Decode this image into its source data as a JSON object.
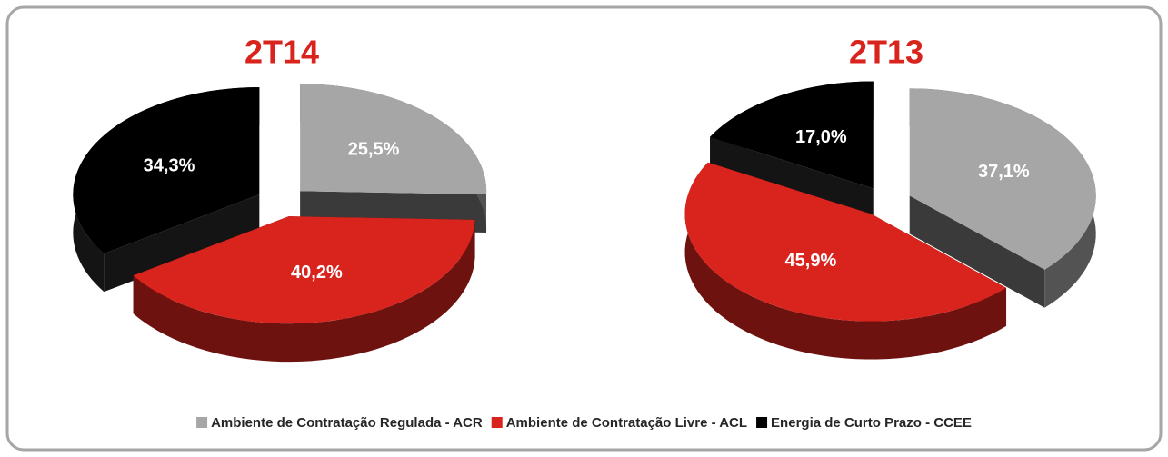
{
  "chart_data": [
    {
      "type": "pie",
      "title": "2T14",
      "categories": [
        "Ambiente de Contratação Regulada - ACR",
        "Ambiente de Contratação Livre - ACL",
        "Energia de Curto Prazo - CCEE"
      ],
      "values": [
        25.5,
        40.2,
        34.3
      ],
      "value_labels": [
        "25,5%",
        "40,2%",
        "34,3%"
      ],
      "colors": [
        "#a6a6a6",
        "#d9231d",
        "#000000"
      ],
      "legend": "bottom"
    },
    {
      "type": "pie",
      "title": "2T13",
      "categories": [
        "Ambiente de Contratação Regulada - ACR",
        "Ambiente de Contratação Livre - ACL",
        "Energia de Curto Prazo - CCEE"
      ],
      "values": [
        37.1,
        45.9,
        17.0
      ],
      "value_labels": [
        "37,1%",
        "45,9%",
        "17,0%"
      ],
      "colors": [
        "#a6a6a6",
        "#d9231d",
        "#000000"
      ],
      "legend": "bottom"
    }
  ]
}
